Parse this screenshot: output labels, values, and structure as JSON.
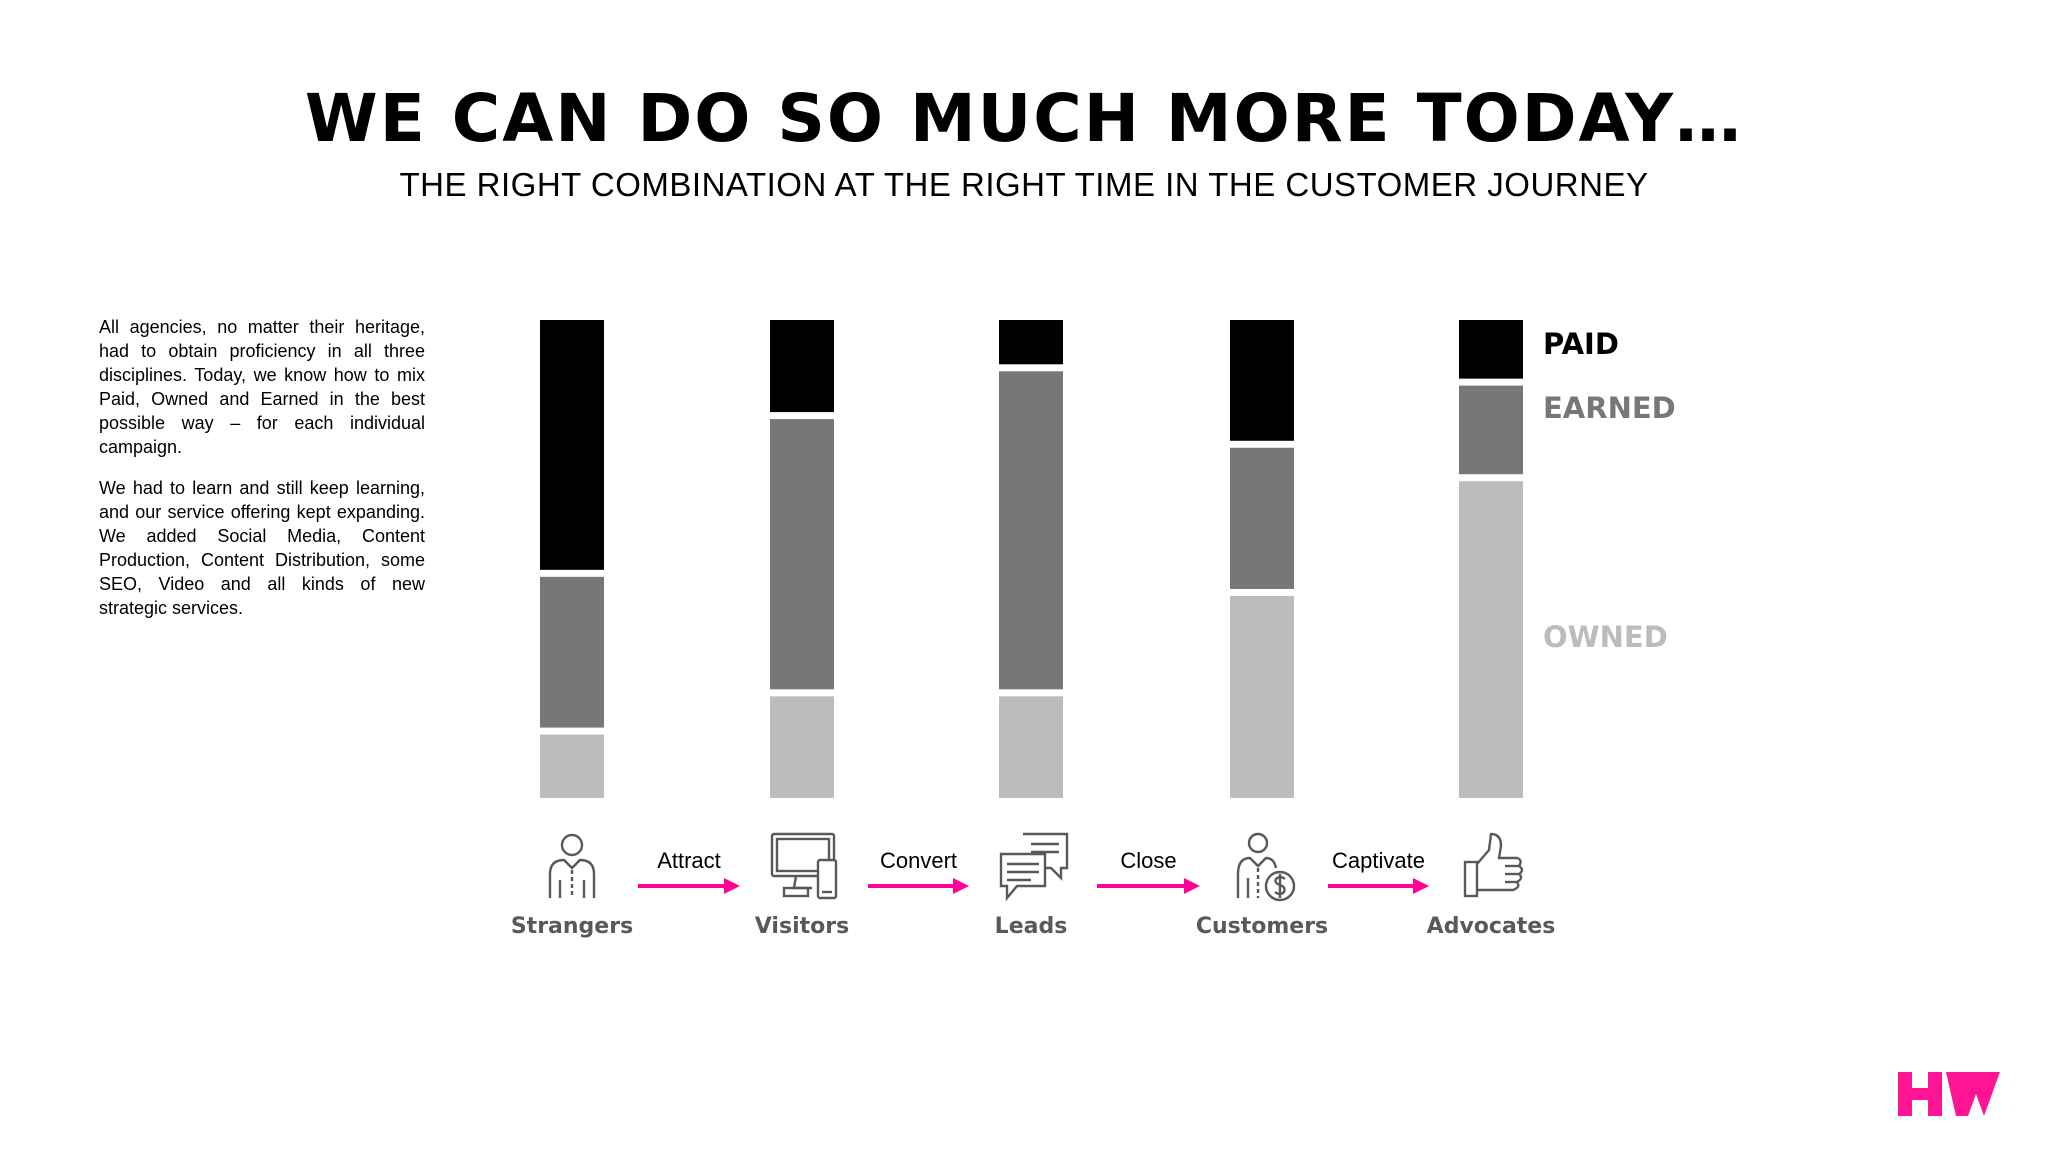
{
  "title": "WE CAN DO SO MUCH MORE TODAY…",
  "subtitle": "THE RIGHT COMBINATION AT THE RIGHT TIME IN THE CUSTOMER JOURNEY",
  "body": {
    "paragraph1": "All agencies, no matter their heritage, had to obtain proficiency in all three disciplines. Today, we know how to mix Paid, Owned and Earned in the best possible way – for each individual campaign.",
    "paragraph2": "We had to learn and still keep learning, and our service offering kept expanding. We added Social Media, Content Production, Content Distribution, some SEO, Video and all kinds of new strategic services."
  },
  "colors": {
    "paid": "#000000",
    "earned": "#777777",
    "owned": "#bcbcbc",
    "arrow": "#ff0099",
    "brand": "#ff1493",
    "icon": "#595959"
  },
  "chart_data": {
    "type": "bar",
    "stacked": true,
    "normalized_to": 100,
    "categories": [
      "Strangers",
      "Visitors",
      "Leads",
      "Customers",
      "Advocates"
    ],
    "series": [
      {
        "name": "OWNED",
        "values": [
          14,
          22,
          22,
          43,
          67
        ]
      },
      {
        "name": "EARNED",
        "values": [
          33,
          58,
          68,
          31,
          20
        ]
      },
      {
        "name": "PAID",
        "values": [
          53,
          20,
          10,
          26,
          13
        ]
      }
    ],
    "legend": [
      "PAID",
      "EARNED",
      "OWNED"
    ],
    "steps": [
      "Attract",
      "Convert",
      "Close",
      "Captivate"
    ],
    "icons": [
      "person-icon",
      "devices-icon",
      "chat-bubbles-icon",
      "customer-dollar-icon",
      "thumbs-up-icon"
    ]
  },
  "logo": {
    "name": "hw-logo"
  }
}
